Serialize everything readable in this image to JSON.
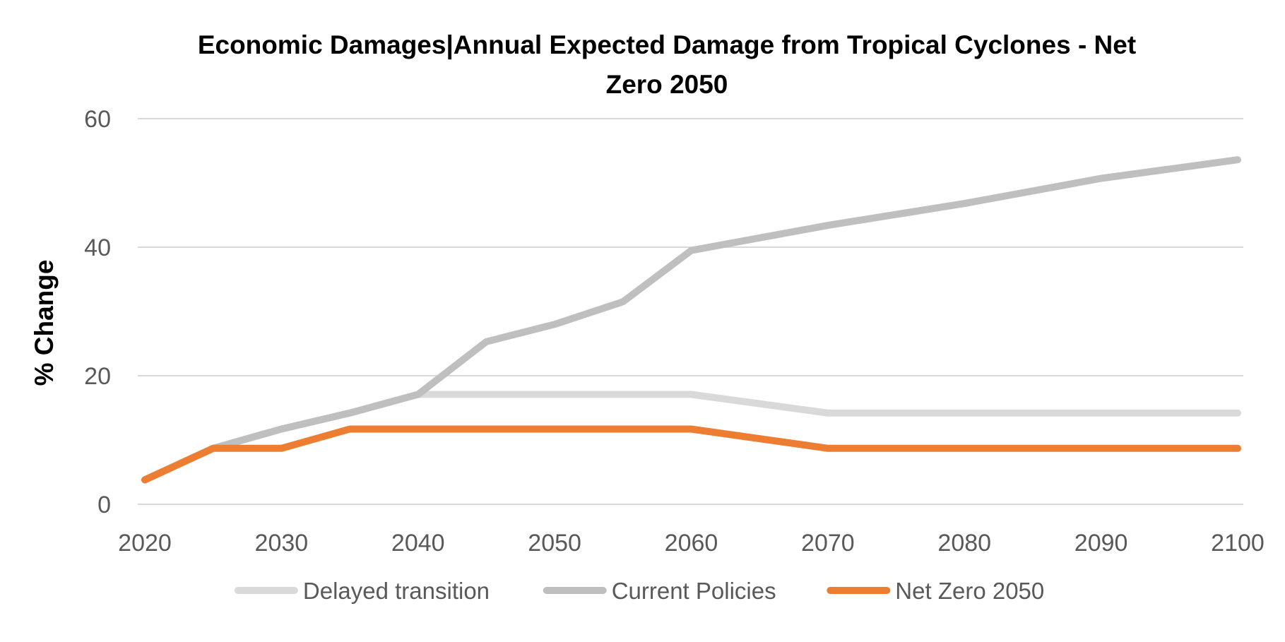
{
  "chart_data": {
    "type": "line",
    "title_line1": "Economic Damages|Annual Expected Damage from Tropical Cyclones - Net",
    "title_line2": "Zero 2050",
    "xlabel": "",
    "ylabel": "% Change",
    "ylim": [
      0,
      60
    ],
    "yticks": [
      "0",
      "20",
      "40",
      "60"
    ],
    "x": [
      2020,
      2025,
      2030,
      2035,
      2040,
      2045,
      2050,
      2055,
      2060,
      2070,
      2080,
      2090,
      2100
    ],
    "xticks": [
      "2020",
      "2030",
      "2040",
      "2050",
      "2060",
      "2070",
      "2080",
      "2090",
      "2100"
    ],
    "grid": true,
    "legend_position": "bottom",
    "series": [
      {
        "name": "Delayed transition",
        "color": "#d9d9d9",
        "values": [
          3.8,
          8.7,
          11.7,
          14.2,
          17.1,
          17.1,
          17.1,
          17.1,
          17.1,
          14.2,
          14.2,
          14.2,
          14.2
        ]
      },
      {
        "name": "Current Policies",
        "color": "#bfbfbf",
        "values": [
          3.8,
          8.7,
          11.7,
          14.2,
          17.1,
          25.3,
          28.0,
          31.5,
          39.5,
          43.4,
          46.8,
          50.7,
          53.6
        ]
      },
      {
        "name": "Net Zero 2050",
        "color": "#ed7d31",
        "values": [
          3.8,
          8.7,
          8.7,
          11.7,
          11.7,
          11.7,
          11.7,
          11.7,
          11.7,
          8.7,
          8.7,
          8.7,
          8.7
        ]
      }
    ]
  }
}
